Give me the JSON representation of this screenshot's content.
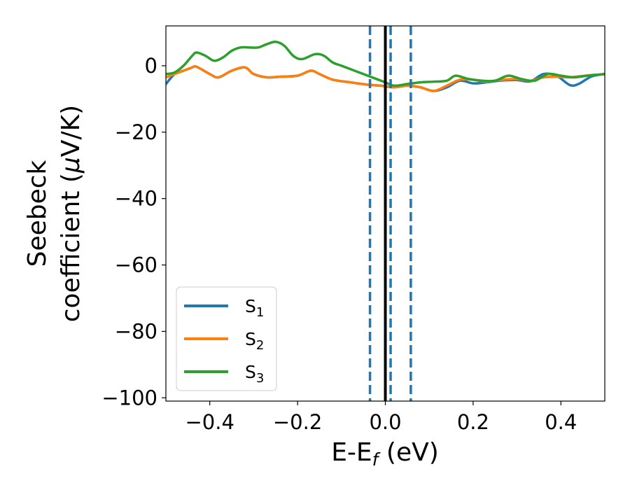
{
  "chart_data": {
    "type": "line",
    "xlabel": "E-E",
    "xlabel_sub": "f",
    "xlabel_unit": " (eV)",
    "ylabel_line1": "Seebeck",
    "ylabel_line2": "coefficient  (",
    "ylabel_mu": "μ",
    "ylabel_unit": "V/K)",
    "xlim": [
      -0.5,
      0.5
    ],
    "ylim": [
      -101,
      12
    ],
    "xticks": [
      -0.4,
      -0.2,
      0.0,
      0.2,
      0.4
    ],
    "xtick_labels": [
      "−0.4",
      "−0.2",
      "0.0",
      "0.2",
      "0.4"
    ],
    "yticks": [
      0,
      -20,
      -40,
      -60,
      -80,
      -100
    ],
    "ytick_labels": [
      "0",
      "−20",
      "−40",
      "−60",
      "−80",
      "−100"
    ],
    "legend_position": "lower-left",
    "colors": {
      "s1": "#1f77b4",
      "s2": "#ff7f0e",
      "s3": "#2ca02c",
      "fermi": "#000000",
      "dashed": "#1f77b4"
    },
    "vertical_lines": [
      {
        "x": 0.0,
        "style": "solid",
        "color": "#000000"
      },
      {
        "x": -0.035,
        "style": "dashed",
        "color": "#1f77b4"
      },
      {
        "x": 0.012,
        "style": "dashed",
        "color": "#1f77b4"
      },
      {
        "x": 0.058,
        "style": "dashed",
        "color": "#1f77b4"
      }
    ],
    "series": [
      {
        "name": "S",
        "sub": "1",
        "color": "#1f77b4",
        "x": [
          -0.5,
          -0.48,
          -0.46,
          -0.44,
          -0.43,
          -0.4,
          -0.38,
          -0.35,
          -0.32,
          -0.3,
          -0.27,
          -0.24,
          -0.2,
          -0.17,
          -0.15,
          -0.12,
          -0.08,
          -0.04,
          -0.01,
          0.0,
          0.02,
          0.05,
          0.08,
          0.11,
          0.14,
          0.17,
          0.2,
          0.23,
          0.26,
          0.3,
          0.33,
          0.36,
          0.39,
          0.42,
          0.44,
          0.47,
          0.5
        ],
        "y": [
          -5.5,
          -2.5,
          -1.5,
          -0.5,
          -0.3,
          -2.5,
          -3.5,
          -1.5,
          -0.5,
          -2.5,
          -3.5,
          -3.3,
          -3.0,
          -1.5,
          -2.5,
          -4.2,
          -5.0,
          -5.7,
          -6.0,
          -6.2,
          -6.5,
          -6.0,
          -6.5,
          -7.6,
          -6.5,
          -4.5,
          -5.3,
          -5.0,
          -4.5,
          -4.3,
          -4.7,
          -2.5,
          -3.0,
          -5.8,
          -5.5,
          -3.2,
          -2.5
        ]
      },
      {
        "name": "S",
        "sub": "2",
        "color": "#ff7f0e",
        "x": [
          -0.5,
          -0.48,
          -0.46,
          -0.44,
          -0.43,
          -0.4,
          -0.38,
          -0.35,
          -0.32,
          -0.3,
          -0.27,
          -0.24,
          -0.2,
          -0.17,
          -0.15,
          -0.12,
          -0.08,
          -0.04,
          -0.01,
          0.0,
          0.02,
          0.05,
          0.08,
          0.11,
          0.14,
          0.17,
          0.2,
          0.23,
          0.26,
          0.3,
          0.33,
          0.36,
          0.39,
          0.42,
          0.44,
          0.47,
          0.5
        ],
        "y": [
          -3.5,
          -2.5,
          -1.5,
          -0.5,
          -0.3,
          -2.5,
          -3.5,
          -1.5,
          -0.5,
          -2.5,
          -3.5,
          -3.3,
          -3.0,
          -1.5,
          -2.5,
          -4.2,
          -5.0,
          -5.7,
          -6.0,
          -6.2,
          -6.5,
          -6.0,
          -6.5,
          -7.6,
          -6.0,
          -4.2,
          -4.2,
          -4.8,
          -4.3,
          -4.0,
          -4.5,
          -3.5,
          -3.3,
          -3.5,
          -3.2,
          -2.8,
          -2.6
        ]
      },
      {
        "name": "S",
        "sub": "3",
        "color": "#2ca02c",
        "x": [
          -0.5,
          -0.48,
          -0.46,
          -0.44,
          -0.43,
          -0.41,
          -0.39,
          -0.37,
          -0.35,
          -0.33,
          -0.31,
          -0.29,
          -0.27,
          -0.25,
          -0.23,
          -0.21,
          -0.19,
          -0.16,
          -0.14,
          -0.12,
          -0.1,
          -0.08,
          -0.05,
          -0.03,
          -0.01,
          0.0,
          0.02,
          0.05,
          0.08,
          0.11,
          0.14,
          0.16,
          0.19,
          0.22,
          0.25,
          0.28,
          0.31,
          0.34,
          0.37,
          0.4,
          0.43,
          0.46,
          0.5
        ],
        "y": [
          -2.5,
          -2.0,
          0.0,
          3.0,
          4.0,
          3.0,
          1.5,
          2.5,
          4.5,
          5.5,
          5.5,
          5.5,
          6.5,
          7.2,
          6.0,
          3.0,
          2.0,
          3.5,
          3.0,
          1.0,
          0.0,
          -1.0,
          -2.5,
          -3.5,
          -4.5,
          -5.0,
          -6.0,
          -5.5,
          -5.0,
          -4.8,
          -4.5,
          -3.0,
          -4.0,
          -4.5,
          -4.5,
          -3.0,
          -4.0,
          -4.5,
          -2.5,
          -3.0,
          -3.5,
          -3.0,
          -2.5
        ]
      }
    ]
  }
}
